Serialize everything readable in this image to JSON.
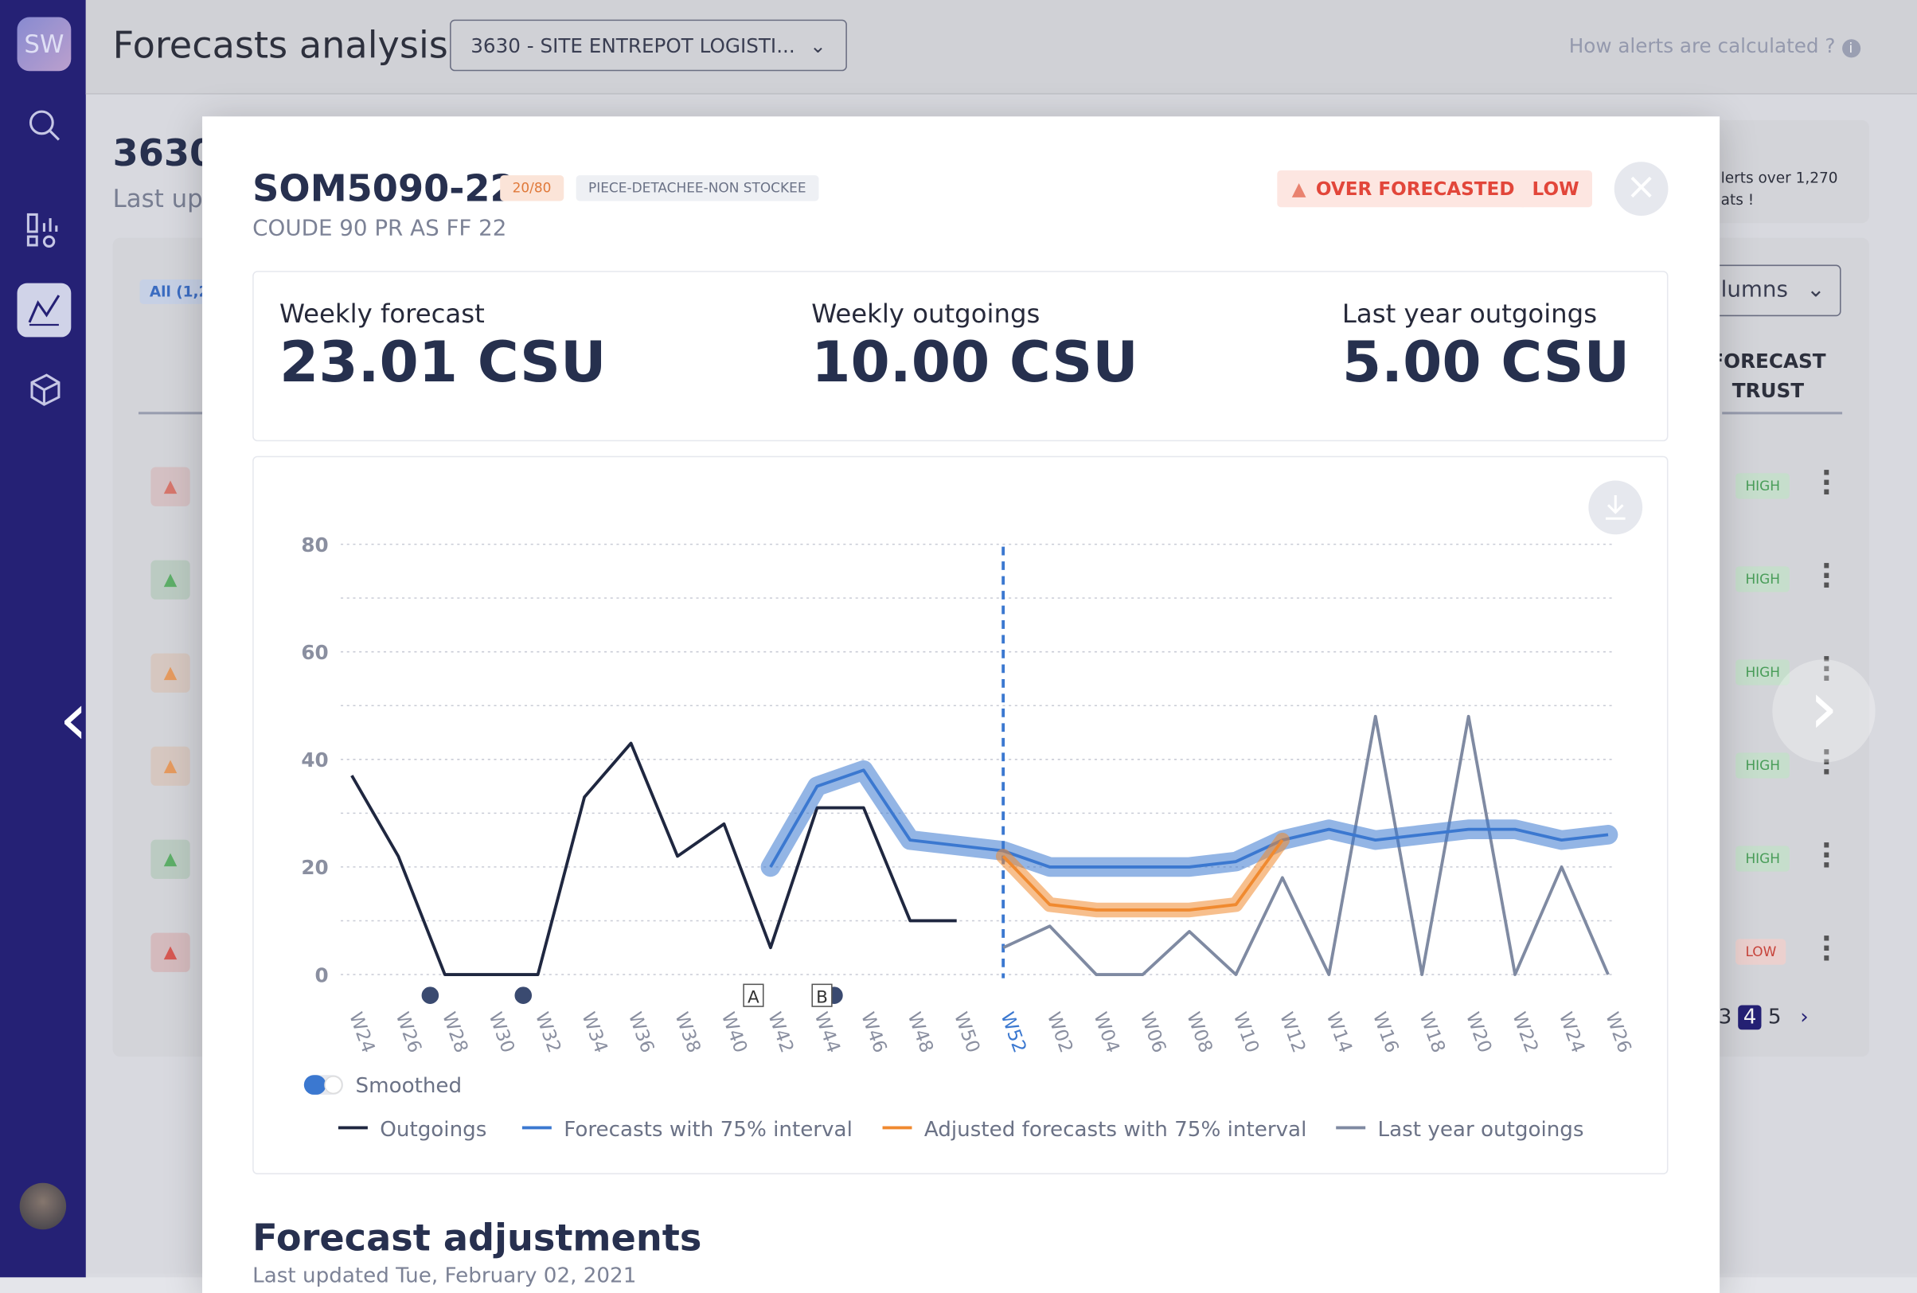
{
  "sidebar": {
    "logo": "SW"
  },
  "header": {
    "title": "Forecasts analysis",
    "site_select": "3630 - SITE ENTREPOT LOGISTI...",
    "help_link": "How alerts are calculated ?"
  },
  "background": {
    "site_code": "3630",
    "last_updated": "Last upc",
    "filter": "All (1,2",
    "alert_note": [
      "lerts over 1,270",
      "ats !"
    ],
    "columns_button": "lumns",
    "column_header": [
      "FORECAST",
      "TRUST"
    ],
    "trust_badges": [
      "HIGH",
      "HIGH",
      "HIGH",
      "HIGH",
      "HIGH",
      "LOW"
    ],
    "pagination": [
      "3",
      "4",
      "5"
    ]
  },
  "modal": {
    "sku": "SOM5090-22",
    "ratio": "20/80",
    "category": "PIECE-DETACHEE-NON STOCKEE",
    "description": "COUDE 90 PR AS FF 22",
    "alert": "OVER FORECASTED",
    "trust": "LOW",
    "stats": [
      {
        "label": "Weekly forecast",
        "value": "23.01 CSU"
      },
      {
        "label": "Weekly outgoings",
        "value": "10.00 CSU"
      },
      {
        "label": "Last year outgoings",
        "value": "5.00 CSU"
      }
    ],
    "smoothed_toggle": "Smoothed",
    "adjustments_title": "Forecast adjustments",
    "adjustments_subtitle": "Last updated Tue, February 02, 2021"
  },
  "chart_data": {
    "type": "line",
    "categories": [
      "W24",
      "W26",
      "W28",
      "W30",
      "W32",
      "W34",
      "W36",
      "W38",
      "W40",
      "W42",
      "W44",
      "W46",
      "W48",
      "W50",
      "W52",
      "W02",
      "W04",
      "W06",
      "W08",
      "W10",
      "W12",
      "W14",
      "W16",
      "W18",
      "W20",
      "W22",
      "W24",
      "W26"
    ],
    "highlight_category": "W52",
    "series": [
      {
        "name": "Outgoings",
        "color": "#1f2740",
        "values": [
          37,
          22,
          0,
          0,
          0,
          33,
          43,
          22,
          28,
          5,
          31,
          31,
          10,
          10,
          null,
          null,
          null,
          null,
          null,
          null,
          null,
          null,
          null,
          null,
          null,
          null,
          null,
          null
        ]
      },
      {
        "name": "Forecasts with 75% interval",
        "color": "#3b78d0",
        "values": [
          null,
          null,
          null,
          null,
          null,
          null,
          null,
          null,
          null,
          20,
          35,
          38,
          25,
          24,
          23,
          20,
          20,
          20,
          20,
          21,
          25,
          27,
          25,
          26,
          27,
          27,
          25,
          26
        ]
      },
      {
        "name": "Adjusted forecasts with 75% interval",
        "color": "#f08a30",
        "values": [
          null,
          null,
          null,
          null,
          null,
          null,
          null,
          null,
          null,
          null,
          null,
          null,
          null,
          null,
          22,
          13,
          12,
          12,
          12,
          13,
          25,
          null,
          null,
          null,
          null,
          null,
          null,
          null
        ]
      },
      {
        "name": "Last year outgoings",
        "color": "#7f8aa2",
        "values": [
          null,
          null,
          null,
          null,
          null,
          null,
          null,
          null,
          null,
          null,
          null,
          null,
          null,
          null,
          5,
          9,
          0,
          0,
          8,
          0,
          18,
          0,
          48,
          0,
          48,
          0,
          20,
          0
        ]
      }
    ],
    "ylim": [
      0,
      80
    ],
    "yticks": [
      0,
      20,
      40,
      60,
      80
    ],
    "minor_grid": [
      10,
      30,
      50,
      70
    ],
    "grid": true,
    "annotations": [
      {
        "label": "A",
        "x": "W40"
      },
      {
        "label": "B",
        "x": "W44"
      }
    ]
  }
}
